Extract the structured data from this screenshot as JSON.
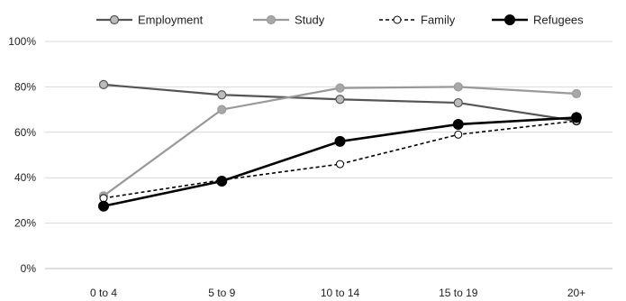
{
  "chart_data": {
    "type": "line",
    "categories": [
      "0 to 4",
      "5 to 9",
      "10 to 14",
      "15 to 19",
      "20+"
    ],
    "ylim": [
      0,
      100
    ],
    "yticks": [
      0,
      20,
      40,
      60,
      80,
      100
    ],
    "ytick_labels": [
      "0%",
      "20%",
      "40%",
      "60%",
      "80%",
      "100%"
    ],
    "grid": true,
    "legend_position": "top",
    "title": "",
    "xlabel": "",
    "ylabel": "",
    "series": [
      {
        "name": "Employment",
        "values": [
          81,
          76.5,
          74.5,
          73,
          65
        ],
        "color": "#555555",
        "marker": "filled-light",
        "line": "solid"
      },
      {
        "name": "Study",
        "values": [
          32,
          70,
          79.5,
          80,
          77
        ],
        "color": "#999999",
        "marker": "filled-light",
        "line": "solid"
      },
      {
        "name": "Family",
        "values": [
          31,
          39,
          46,
          59,
          65
        ],
        "color": "#000000",
        "marker": "open",
        "line": "dashed"
      },
      {
        "name": "Refugees",
        "values": [
          27.5,
          38.5,
          56,
          63.5,
          66.5
        ],
        "color": "#000000",
        "marker": "filled-dark",
        "line": "solid"
      }
    ]
  }
}
